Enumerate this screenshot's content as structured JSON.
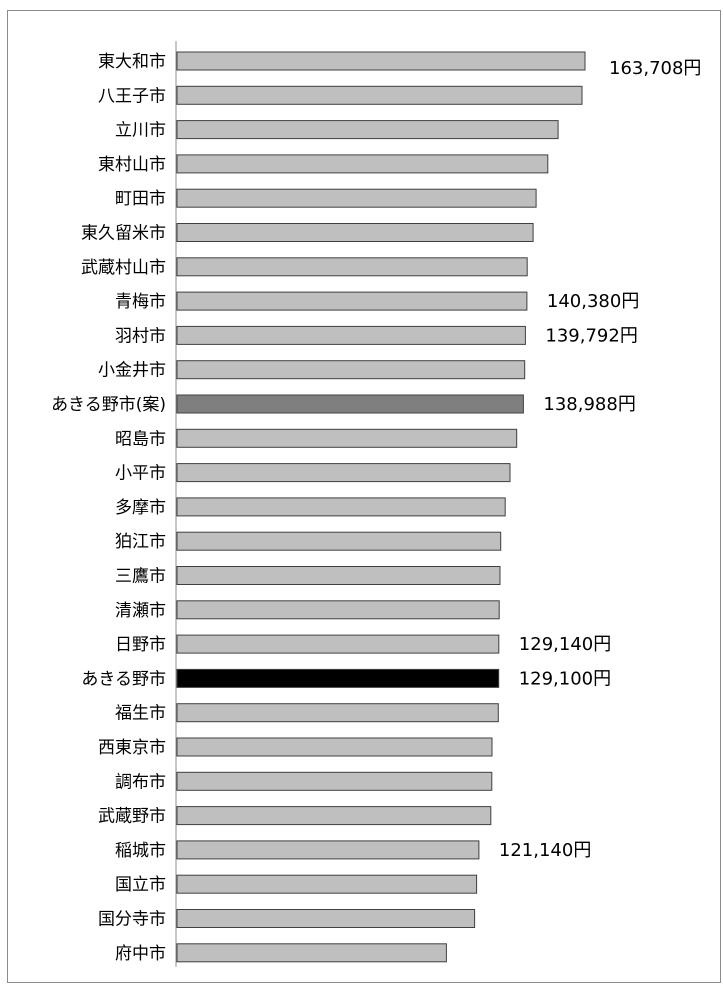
{
  "chart_data": {
    "type": "bar",
    "orientation": "horizontal",
    "title": "",
    "xlabel": "",
    "ylabel": "",
    "grid": false,
    "legend": "none",
    "categories": [
      "東大和市",
      "八王子市",
      "立川市",
      "東村山市",
      "町田市",
      "東久留米市",
      "武蔵村山市",
      "青梅市",
      "羽村市",
      "小金井市",
      "あきる野市(案)",
      "昭島市",
      "小平市",
      "多摩市",
      "狛江市",
      "三鷹市",
      "清瀬市",
      "日野市",
      "あきる野市",
      "福生市",
      "西東京市",
      "調布市",
      "武蔵野市",
      "稲城市",
      "国立市",
      "国分寺市",
      "府中市"
    ],
    "values": [
      163708,
      162500,
      152900,
      148800,
      144100,
      142900,
      140500,
      140380,
      139792,
      139500,
      138988,
      136300,
      133600,
      131700,
      129900,
      129600,
      129300,
      129140,
      129100,
      128900,
      126400,
      126300,
      125900,
      121140,
      120200,
      119400,
      108100
    ],
    "value_labels": [
      "163,708円",
      "",
      "",
      "",
      "",
      "",
      "",
      "140,380円",
      "139,792円",
      "",
      "138,988円",
      "",
      "",
      "",
      "",
      "",
      "",
      "129,140円",
      "129,100円",
      "",
      "",
      "",
      "",
      "121,140円",
      "",
      "",
      ""
    ],
    "colors": [
      "#bfbfbf",
      "#bfbfbf",
      "#bfbfbf",
      "#bfbfbf",
      "#bfbfbf",
      "#bfbfbf",
      "#bfbfbf",
      "#bfbfbf",
      "#bfbfbf",
      "#bfbfbf",
      "#7f7f7f",
      "#bfbfbf",
      "#bfbfbf",
      "#bfbfbf",
      "#bfbfbf",
      "#bfbfbf",
      "#bfbfbf",
      "#bfbfbf",
      "#000000",
      "#bfbfbf",
      "#bfbfbf",
      "#bfbfbf",
      "#bfbfbf",
      "#bfbfbf",
      "#bfbfbf",
      "#bfbfbf",
      "#bfbfbf"
    ],
    "xlim": [
      0,
      180000
    ]
  }
}
